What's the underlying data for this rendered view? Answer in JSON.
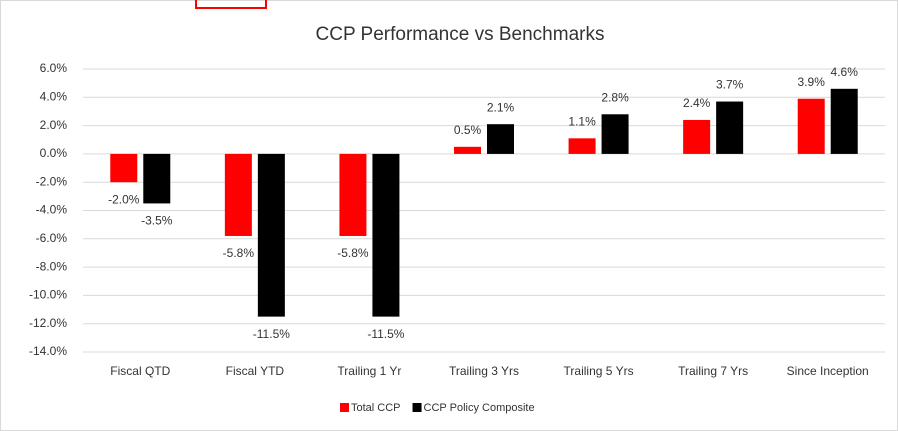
{
  "chart_data": {
    "type": "bar",
    "title": "CCP Performance vs Benchmarks",
    "categories": [
      "Fiscal QTD",
      "Fiscal YTD",
      "Trailing 1 Yr",
      "Trailing 3 Yrs",
      "Trailing 5 Yrs",
      "Trailing 7 Yrs",
      "Since Inception"
    ],
    "series": [
      {
        "name": "Total CCP",
        "color": "#ff0000",
        "values": [
          -2.0,
          -5.8,
          -5.8,
          0.5,
          1.1,
          2.4,
          3.9
        ],
        "value_labels": [
          "-2.0%",
          "-5.8%",
          "-5.8%",
          "0.5%",
          "1.1%",
          "2.4%",
          "3.9%"
        ]
      },
      {
        "name": "CCP Policy Composite",
        "color": "#000000",
        "values": [
          -3.5,
          -11.5,
          -11.5,
          2.1,
          2.8,
          3.7,
          4.6
        ],
        "value_labels": [
          "-3.5%",
          "-11.5%",
          "-11.5%",
          "2.1%",
          "2.8%",
          "3.7%",
          "4.6%"
        ]
      }
    ],
    "ylim": [
      -14,
      6
    ],
    "yticks": [
      {
        "value": -14,
        "label": "-14.0%"
      },
      {
        "value": -12,
        "label": "-12.0%"
      },
      {
        "value": -10,
        "label": "-10.0%"
      },
      {
        "value": -8,
        "label": "-8.0%"
      },
      {
        "value": -6,
        "label": "-6.0%"
      },
      {
        "value": -4,
        "label": "-4.0%"
      },
      {
        "value": -2,
        "label": "-2.0%"
      },
      {
        "value": 0,
        "label": "0.0%"
      },
      {
        "value": 2,
        "label": "2.0%"
      },
      {
        "value": 4,
        "label": "4.0%"
      },
      {
        "value": 6,
        "label": "6.0%"
      }
    ],
    "grid": true,
    "legend": "bottom"
  }
}
